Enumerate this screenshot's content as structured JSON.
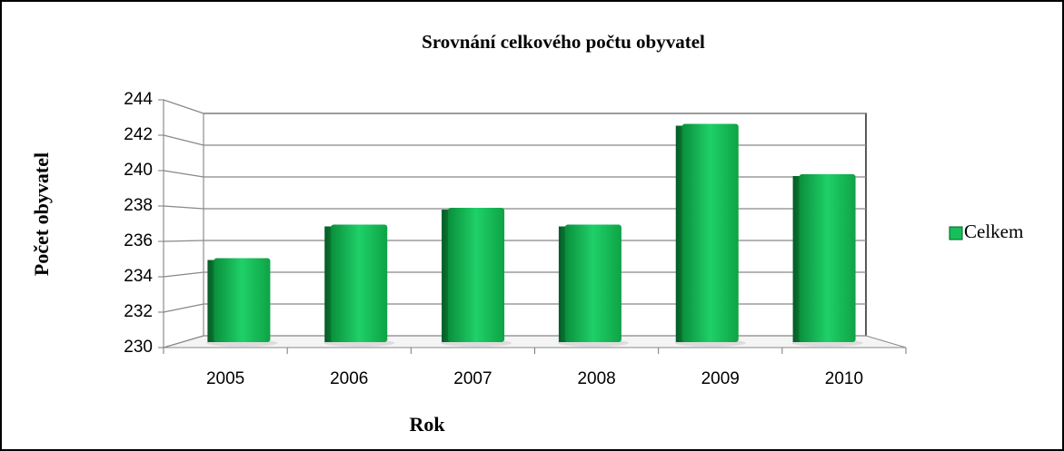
{
  "chart_data": {
    "type": "bar",
    "title": "Srovnání celkového počtu obyvatel",
    "x_label": "Rok",
    "y_label": "Počet obyvatel",
    "categories": [
      "2005",
      "2006",
      "2007",
      "2008",
      "2009",
      "2010"
    ],
    "series": [
      {
        "name": "Celkem",
        "color": "#17bf5a",
        "values": [
          235,
          237,
          238,
          237,
          243,
          240
        ]
      }
    ],
    "ylim": [
      230,
      244
    ],
    "yticks": [
      230,
      232,
      234,
      236,
      238,
      240,
      242,
      244
    ],
    "grid": true,
    "legend": "right"
  }
}
